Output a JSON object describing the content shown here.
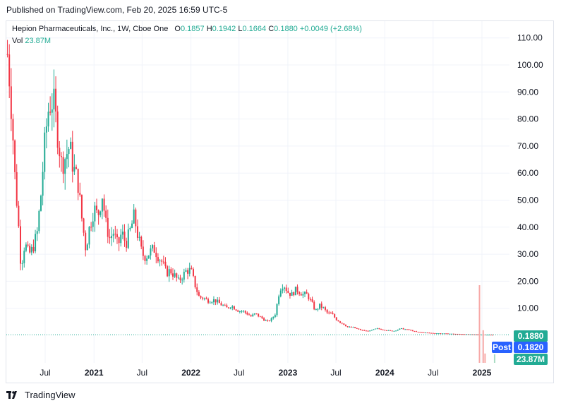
{
  "header": {
    "published": "Published on TradingView.com, Feb 20, 2025 16:59 UTC-5"
  },
  "legend": {
    "symbol": "Hepion Pharmaceuticals, Inc., 1W, Cboe One",
    "o_label": "O",
    "o": "0.1857",
    "h_label": "H",
    "h": "0.1942",
    "l_label": "L",
    "l": "0.1664",
    "c_label": "C",
    "c": "0.1880",
    "change": "+0.0049 (+2.68%)",
    "vol_label": "Vol",
    "vol": "23.87M"
  },
  "badges": {
    "last": "0.1880",
    "post_label": "Post",
    "post": "0.1820",
    "volume": "23.87M"
  },
  "footer": {
    "brand": "TradingView"
  },
  "colors": {
    "up": "#22ab94",
    "down": "#f23645",
    "post": "#2962ff",
    "grid": "#f0f3fa",
    "axis_text": "#131722"
  },
  "chart_data": {
    "type": "candlestick",
    "timeframe": "1W",
    "y_axis": {
      "ticks": [
        "110.00",
        "100.00",
        "90.00",
        "80.00",
        "70.00",
        "60.00",
        "50.00",
        "40.00",
        "30.00",
        "20.00",
        "10.00"
      ],
      "range": [
        -5,
        116
      ]
    },
    "x_axis": {
      "ticks": [
        "Jul",
        "2021",
        "Jul",
        "2022",
        "Jul",
        "2023",
        "Jul",
        "2024",
        "Jul",
        "2025"
      ],
      "range": [
        "2020-02-01",
        "2025-03-15"
      ]
    },
    "grid": true,
    "series": [
      {
        "name": "Hepion Pharmaceuticals, Inc.",
        "points": [
          [
            "2020-02-10",
            104
          ],
          [
            "2020-02-20",
            92
          ],
          [
            "2020-03-01",
            75
          ],
          [
            "2020-03-10",
            57
          ],
          [
            "2020-03-20",
            45
          ],
          [
            "2020-04-01",
            25
          ],
          [
            "2020-04-15",
            34
          ],
          [
            "2020-05-01",
            30
          ],
          [
            "2020-05-15",
            32
          ],
          [
            "2020-06-01",
            38
          ],
          [
            "2020-06-15",
            52
          ],
          [
            "2020-07-01",
            73
          ],
          [
            "2020-07-15",
            85
          ],
          [
            "2020-08-01",
            87
          ],
          [
            "2020-08-15",
            76
          ],
          [
            "2020-09-01",
            63
          ],
          [
            "2020-09-15",
            66
          ],
          [
            "2020-10-01",
            70
          ],
          [
            "2020-10-15",
            62
          ],
          [
            "2020-11-01",
            57
          ],
          [
            "2020-11-15",
            44
          ],
          [
            "2020-12-01",
            32
          ],
          [
            "2020-12-15",
            40
          ],
          [
            "2021-01-01",
            47
          ],
          [
            "2021-01-15",
            44
          ],
          [
            "2021-02-01",
            52
          ],
          [
            "2021-02-15",
            41
          ],
          [
            "2021-03-01",
            36
          ],
          [
            "2021-03-15",
            38
          ],
          [
            "2021-04-01",
            33
          ],
          [
            "2021-04-15",
            38
          ],
          [
            "2021-05-01",
            34
          ],
          [
            "2021-05-15",
            38
          ],
          [
            "2021-06-01",
            44
          ],
          [
            "2021-06-15",
            37
          ],
          [
            "2021-07-01",
            30
          ],
          [
            "2021-07-15",
            29
          ],
          [
            "2021-08-01",
            31
          ],
          [
            "2021-08-15",
            32
          ],
          [
            "2021-09-01",
            29
          ],
          [
            "2021-09-15",
            27
          ],
          [
            "2021-10-01",
            23
          ],
          [
            "2021-10-15",
            24
          ],
          [
            "2021-11-01",
            22
          ],
          [
            "2021-11-15",
            20
          ],
          [
            "2021-12-01",
            22
          ],
          [
            "2021-12-15",
            24
          ],
          [
            "2022-01-01",
            24
          ],
          [
            "2022-01-15",
            19
          ],
          [
            "2022-02-01",
            14
          ],
          [
            "2022-02-15",
            14
          ],
          [
            "2022-03-01",
            13
          ],
          [
            "2022-03-15",
            13
          ],
          [
            "2022-04-01",
            13
          ],
          [
            "2022-04-15",
            12
          ],
          [
            "2022-05-01",
            11
          ],
          [
            "2022-05-15",
            10
          ],
          [
            "2022-06-01",
            11
          ],
          [
            "2022-06-15",
            10
          ],
          [
            "2022-07-01",
            9
          ],
          [
            "2022-07-15",
            9
          ],
          [
            "2022-08-01",
            8
          ],
          [
            "2022-08-15",
            7
          ],
          [
            "2022-09-01",
            8
          ],
          [
            "2022-09-15",
            7
          ],
          [
            "2022-10-01",
            6
          ],
          [
            "2022-10-15",
            5
          ],
          [
            "2022-11-01",
            6
          ],
          [
            "2022-11-15",
            8
          ],
          [
            "2022-12-01",
            17
          ],
          [
            "2022-12-15",
            19
          ],
          [
            "2023-01-01",
            16
          ],
          [
            "2023-01-15",
            15
          ],
          [
            "2023-02-01",
            17
          ],
          [
            "2023-02-15",
            16
          ],
          [
            "2023-03-01",
            15
          ],
          [
            "2023-03-15",
            15
          ],
          [
            "2023-04-01",
            12
          ],
          [
            "2023-04-15",
            9
          ],
          [
            "2023-05-01",
            11
          ],
          [
            "2023-05-15",
            10
          ],
          [
            "2023-06-01",
            8
          ],
          [
            "2023-06-15",
            8
          ],
          [
            "2023-07-01",
            6
          ],
          [
            "2023-07-15",
            5
          ],
          [
            "2023-08-01",
            4
          ],
          [
            "2023-08-15",
            3
          ],
          [
            "2023-09-01",
            3
          ],
          [
            "2023-09-15",
            2.5
          ],
          [
            "2023-10-01",
            2
          ],
          [
            "2023-11-01",
            1.5
          ],
          [
            "2023-12-01",
            2.5
          ],
          [
            "2024-01-01",
            2
          ],
          [
            "2024-02-01",
            1.5
          ],
          [
            "2024-03-01",
            2.5
          ],
          [
            "2024-04-01",
            2
          ],
          [
            "2024-05-01",
            1.2
          ],
          [
            "2024-06-01",
            1
          ],
          [
            "2024-07-01",
            0.8
          ],
          [
            "2024-08-01",
            0.7
          ],
          [
            "2024-09-01",
            0.6
          ],
          [
            "2024-10-01",
            0.5
          ],
          [
            "2024-11-01",
            0.4
          ],
          [
            "2024-12-01",
            0.3
          ],
          [
            "2025-01-01",
            0.25
          ],
          [
            "2025-02-15",
            0.188
          ]
        ],
        "last_close": 0.188,
        "post_market": 0.182
      }
    ],
    "volume": {
      "last": "23.87M",
      "spikes": [
        [
          "2024-12-20",
          100
        ],
        [
          "2025-01-03",
          42
        ],
        [
          "2025-01-10",
          12
        ]
      ]
    }
  }
}
